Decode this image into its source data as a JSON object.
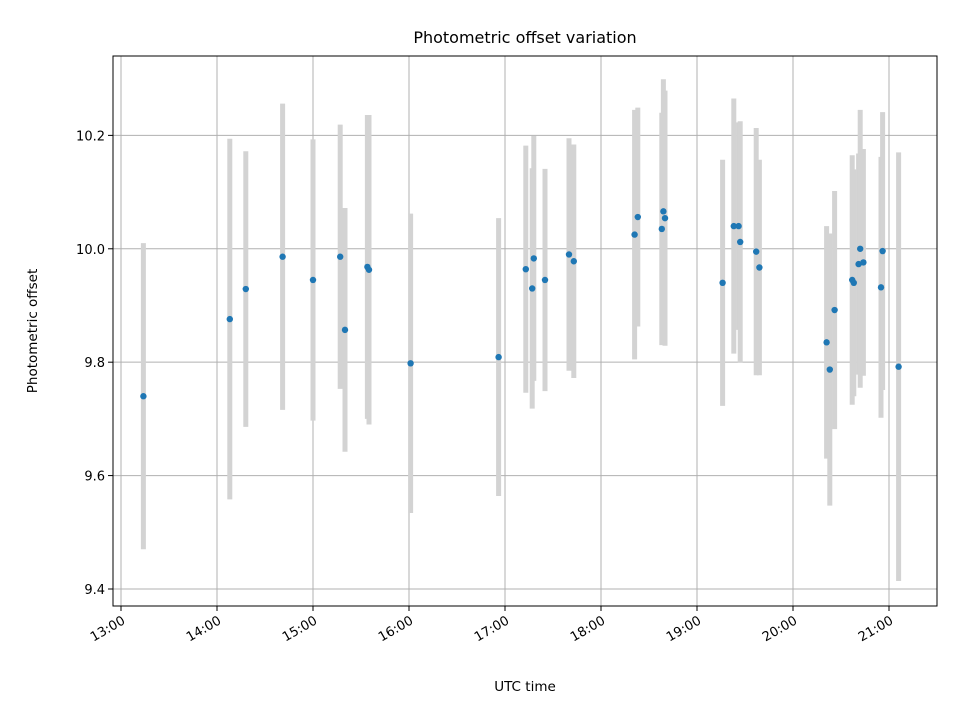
{
  "chart_data": {
    "type": "scatter",
    "title": "Photometric offset variation",
    "xlabel": "UTC time",
    "ylabel": "Photometric offset",
    "xlim": [
      "12:55",
      "21:30"
    ],
    "ylim": [
      9.37,
      10.34
    ],
    "grid": true,
    "x_ticks": [
      "13:00",
      "14:00",
      "15:00",
      "16:00",
      "17:00",
      "18:00",
      "19:00",
      "20:00",
      "21:00"
    ],
    "y_ticks": [
      "9.4",
      "9.6",
      "9.8",
      "10.0",
      "10.2"
    ],
    "y_tick_values": [
      9.4,
      9.6,
      9.8,
      10.0,
      10.2
    ],
    "marker_color": "#1f77b4",
    "errorbar_color": "#d3d3d3",
    "points": [
      {
        "x": "13:14",
        "y": 9.74,
        "err": 0.27
      },
      {
        "x": "14:08",
        "y": 9.876,
        "err": 0.318
      },
      {
        "x": "14:18",
        "y": 9.929,
        "err": 0.243
      },
      {
        "x": "14:41",
        "y": 9.986,
        "err": 0.27
      },
      {
        "x": "15:00",
        "y": 9.945,
        "err": 0.248
      },
      {
        "x": "15:17",
        "y": 9.986,
        "err": 0.233
      },
      {
        "x": "15:20",
        "y": 9.857,
        "err": 0.215
      },
      {
        "x": "15:34",
        "y": 9.968,
        "err": 0.268
      },
      {
        "x": "15:35",
        "y": 9.963,
        "err": 0.273
      },
      {
        "x": "16:01",
        "y": 9.798,
        "err": 0.264
      },
      {
        "x": "16:56",
        "y": 9.809,
        "err": 0.245
      },
      {
        "x": "17:13",
        "y": 9.964,
        "err": 0.218
      },
      {
        "x": "17:17",
        "y": 9.93,
        "err": 0.212
      },
      {
        "x": "17:18",
        "y": 9.983,
        "err": 0.216
      },
      {
        "x": "17:25",
        "y": 9.945,
        "err": 0.196
      },
      {
        "x": "17:40",
        "y": 9.99,
        "err": 0.205
      },
      {
        "x": "17:43",
        "y": 9.978,
        "err": 0.206
      },
      {
        "x": "18:21",
        "y": 10.025,
        "err": 0.22
      },
      {
        "x": "18:23",
        "y": 10.056,
        "err": 0.193
      },
      {
        "x": "18:38",
        "y": 10.035,
        "err": 0.205
      },
      {
        "x": "18:39",
        "y": 10.066,
        "err": 0.233
      },
      {
        "x": "18:40",
        "y": 10.054,
        "err": 0.225
      },
      {
        "x": "19:16",
        "y": 9.94,
        "err": 0.217
      },
      {
        "x": "19:23",
        "y": 10.04,
        "err": 0.225
      },
      {
        "x": "19:26",
        "y": 10.04,
        "err": 0.183
      },
      {
        "x": "19:27",
        "y": 10.012,
        "err": 0.213
      },
      {
        "x": "19:37",
        "y": 9.995,
        "err": 0.218
      },
      {
        "x": "19:39",
        "y": 9.967,
        "err": 0.19
      },
      {
        "x": "20:21",
        "y": 9.835,
        "err": 0.205
      },
      {
        "x": "20:23",
        "y": 9.787,
        "err": 0.24
      },
      {
        "x": "20:26",
        "y": 9.892,
        "err": 0.21
      },
      {
        "x": "20:37",
        "y": 9.945,
        "err": 0.22
      },
      {
        "x": "20:38",
        "y": 9.94,
        "err": 0.2
      },
      {
        "x": "20:41",
        "y": 9.973,
        "err": 0.195
      },
      {
        "x": "20:42",
        "y": 10.0,
        "err": 0.245
      },
      {
        "x": "20:44",
        "y": 9.976,
        "err": 0.2
      },
      {
        "x": "20:55",
        "y": 9.932,
        "err": 0.23
      },
      {
        "x": "20:56",
        "y": 9.996,
        "err": 0.245
      },
      {
        "x": "21:06",
        "y": 9.792,
        "err": 0.378
      }
    ]
  }
}
